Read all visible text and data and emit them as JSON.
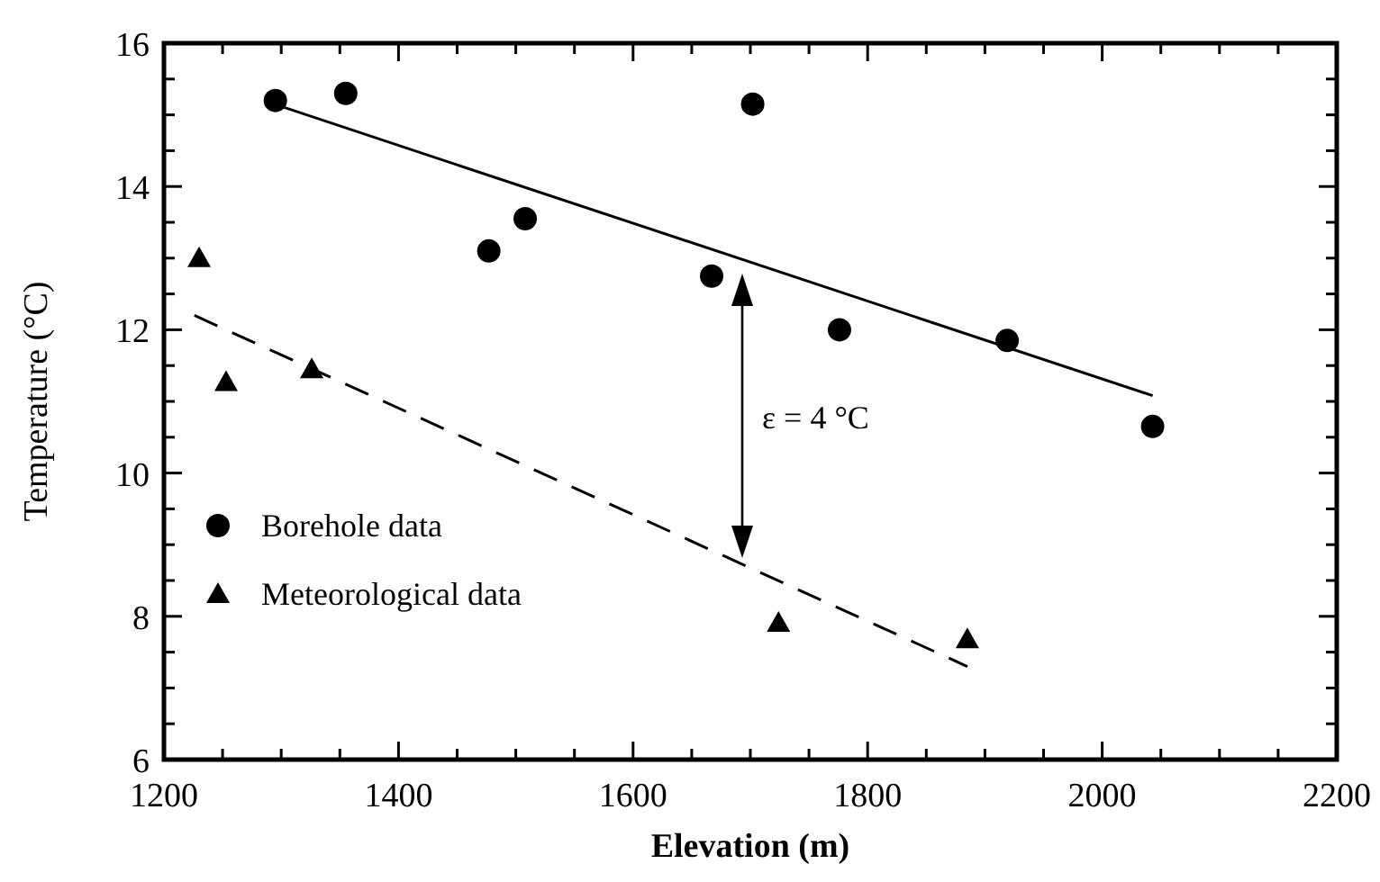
{
  "chart_data": {
    "type": "scatter",
    "xlabel": "Elevation (m)",
    "ylabel": "Temperature (°C)",
    "xlim": [
      1200,
      2200
    ],
    "ylim": [
      6,
      16
    ],
    "xticks": [
      1200,
      {
        "value": 1250,
        "label": null
      },
      {
        "value": 1300,
        "label": null
      },
      {
        "value": 1350,
        "label": null
      },
      1400,
      {
        "value": 1450,
        "label": null
      },
      {
        "value": 1500,
        "label": null
      },
      {
        "value": 1550,
        "label": null
      },
      1600,
      {
        "value": 1650,
        "label": null
      },
      {
        "value": 1700,
        "label": null
      },
      {
        "value": 1750,
        "label": null
      },
      1800,
      {
        "value": 1850,
        "label": null
      },
      {
        "value": 1900,
        "label": null
      },
      {
        "value": 1950,
        "label": null
      },
      2000,
      {
        "value": 2050,
        "label": null
      },
      {
        "value": 2100,
        "label": null
      },
      {
        "value": 2150,
        "label": null
      },
      2200
    ],
    "yticks": [
      6,
      {
        "value": 6.5,
        "label": null
      },
      {
        "value": 7,
        "label": null
      },
      {
        "value": 7.5,
        "label": null
      },
      8,
      {
        "value": 8.5,
        "label": null
      },
      {
        "value": 9,
        "label": null
      },
      {
        "value": 9.5,
        "label": null
      },
      10,
      {
        "value": 10.5,
        "label": null
      },
      {
        "value": 11,
        "label": null
      },
      {
        "value": 11.5,
        "label": null
      },
      12,
      {
        "value": 12.5,
        "label": null
      },
      {
        "value": 13,
        "label": null
      },
      {
        "value": 13.5,
        "label": null
      },
      14,
      {
        "value": 14.5,
        "label": null
      },
      {
        "value": 15,
        "label": null
      },
      {
        "value": 15.5,
        "label": null
      },
      16
    ],
    "grid": false,
    "legend": "bottom left",
    "series": [
      {
        "name": "Borehole data",
        "marker": "circle",
        "color": "#000000",
        "x": [
          1295,
          1355,
          1477,
          1508,
          1667,
          1702,
          1776,
          1919,
          2043
        ],
        "values": [
          15.2,
          15.3,
          13.1,
          13.55,
          12.75,
          15.15,
          12.0,
          11.85,
          10.65
        ]
      },
      {
        "name": "Meteorological data",
        "marker": "triangle",
        "color": "#000000",
        "x": [
          1230,
          1253,
          1326,
          1724,
          1885
        ],
        "values": [
          13.0,
          11.27,
          11.45,
          7.91,
          7.68
        ]
      },
      {
        "type": "line",
        "line_style": "solid",
        "color": "#000000",
        "x": [
          1294,
          2043
        ],
        "values": [
          15.15,
          11.08
        ]
      },
      {
        "type": "line",
        "line_style": "dashed",
        "color": "#000000",
        "x": [
          1226,
          1885
        ],
        "values": [
          12.2,
          7.3
        ]
      }
    ],
    "annotations": [
      "ε = 4 °C"
    ]
  }
}
